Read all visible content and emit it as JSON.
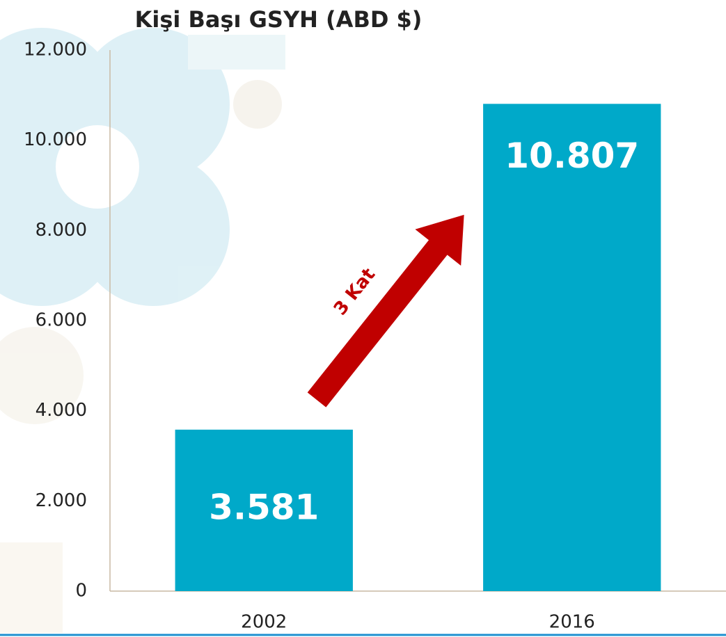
{
  "chart_data": {
    "type": "bar",
    "title": "Kişi Başı GSYH (ABD $)",
    "categories": [
      "2002",
      "2016"
    ],
    "values": [
      3581,
      10807
    ],
    "value_labels": [
      "3.581",
      "10.807"
    ],
    "color": "#00a9c9",
    "ylim": [
      0,
      12000
    ],
    "yticks": [
      0,
      {
        "value": 2000,
        "label": "2.000"
      },
      {
        "value": 4000,
        "label": "4.000"
      },
      {
        "value": 6000,
        "label": "6.000"
      },
      {
        "value": 8000,
        "label": "8.000"
      },
      {
        "value": 10000,
        "label": "10.000"
      },
      {
        "value": 12000,
        "label": "12.000"
      }
    ],
    "grid": false,
    "annotation": "3 Kat"
  }
}
